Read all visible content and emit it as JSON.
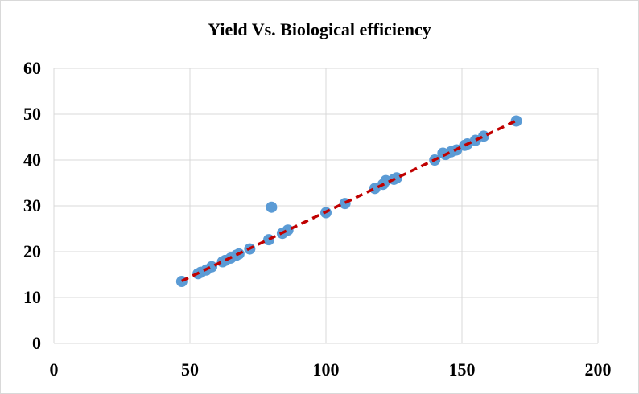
{
  "chart_data": {
    "type": "scatter",
    "title": "Yield Vs. Biological efficiency",
    "xlabel": "",
    "ylabel": "",
    "xlim": [
      0,
      200
    ],
    "ylim": [
      0,
      60
    ],
    "x_ticks": [
      0,
      50,
      100,
      150,
      200
    ],
    "y_ticks": [
      0,
      10,
      20,
      30,
      40,
      50,
      60
    ],
    "grid": true,
    "legend": "none",
    "colors": {
      "points": "#5b9bd5",
      "trendline": "#c00000",
      "grid": "#d9d9d9"
    },
    "trendline": {
      "style": "dashed",
      "x": [
        47,
        170
      ],
      "y": [
        13.6,
        48.6
      ]
    },
    "series": [
      {
        "points": [
          [
            47,
            13.5
          ],
          [
            53,
            15.2
          ],
          [
            54,
            15.5
          ],
          [
            56,
            16.0
          ],
          [
            58,
            16.7
          ],
          [
            62,
            17.8
          ],
          [
            63,
            18.1
          ],
          [
            65,
            18.6
          ],
          [
            67,
            19.2
          ],
          [
            68,
            19.5
          ],
          [
            72,
            20.6
          ],
          [
            79,
            22.6
          ],
          [
            80,
            29.7
          ],
          [
            84,
            24.0
          ],
          [
            86,
            24.7
          ],
          [
            100,
            28.5
          ],
          [
            107,
            30.5
          ],
          [
            118,
            33.8
          ],
          [
            121,
            34.7
          ],
          [
            122,
            35.5
          ],
          [
            125,
            35.8
          ],
          [
            126,
            36.1
          ],
          [
            140,
            40.0
          ],
          [
            143,
            41.5
          ],
          [
            144,
            41.2
          ],
          [
            146,
            41.8
          ],
          [
            148,
            42.2
          ],
          [
            151,
            43.2
          ],
          [
            152,
            43.5
          ],
          [
            155,
            44.3
          ],
          [
            158,
            45.2
          ],
          [
            170,
            48.5
          ]
        ]
      }
    ]
  }
}
